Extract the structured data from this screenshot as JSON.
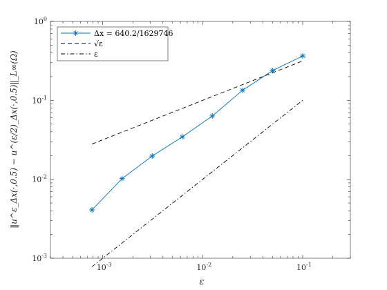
{
  "chart_data": {
    "type": "line",
    "xscale": "log",
    "yscale": "log",
    "xlim": [
      0.0003,
      0.3
    ],
    "ylim": [
      0.001,
      1
    ],
    "grid": false,
    "legend_position": "top-left",
    "xlabel": "ε",
    "ylabel": "‖u^ε_Δx(·,0.5) − u^(ε/2)_Δx(·,0.5)‖_L∞(Ω)",
    "x_ticks": [
      {
        "value": 0.001,
        "label_base": "10",
        "label_exp": "-3"
      },
      {
        "value": 0.01,
        "label_base": "10",
        "label_exp": "-2"
      },
      {
        "value": 0.1,
        "label_base": "10",
        "label_exp": "-1"
      }
    ],
    "y_ticks": [
      {
        "value": 0.001,
        "label_base": "10",
        "label_exp": "-3"
      },
      {
        "value": 0.01,
        "label_base": "10",
        "label_exp": "-2"
      },
      {
        "value": 0.1,
        "label_base": "10",
        "label_exp": "-1"
      },
      {
        "value": 1,
        "label_base": "10",
        "label_exp": "0"
      }
    ],
    "series": [
      {
        "name": "Δx = 640.2/1629746",
        "color": "#0072bd",
        "style": "solid",
        "marker": "asterisk",
        "x": [
          0.00078125,
          0.0015625,
          0.003125,
          0.00625,
          0.0125,
          0.025,
          0.05,
          0.1
        ],
        "y": [
          0.0041,
          0.0102,
          0.0197,
          0.0345,
          0.0635,
          0.134,
          0.238,
          0.365
        ]
      },
      {
        "name": "√ε",
        "color": "#000000",
        "style": "dashed",
        "marker": "none",
        "x": [
          0.00078125,
          0.1
        ],
        "y": [
          0.02795,
          0.3162
        ]
      },
      {
        "name": "ε",
        "color": "#000000",
        "style": "dashdot",
        "marker": "none",
        "x": [
          0.00078125,
          0.1
        ],
        "y": [
          0.00078125,
          0.1
        ]
      }
    ]
  }
}
